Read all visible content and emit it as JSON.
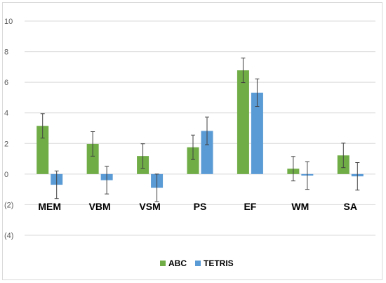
{
  "chart_data": {
    "type": "bar",
    "categories": [
      "MEM",
      "VBM",
      "VSM",
      "PS",
      "EF",
      "WM",
      "SA"
    ],
    "series": [
      {
        "name": "ABC",
        "color": "#70AD47",
        "values": [
          3.15,
          1.97,
          1.18,
          1.75,
          6.78,
          0.35,
          1.22
        ],
        "error": [
          0.8,
          0.8,
          0.8,
          0.8,
          0.8,
          0.8,
          0.8
        ]
      },
      {
        "name": "TETRIS",
        "color": "#5B9BD5",
        "values": [
          -0.7,
          -0.4,
          -0.9,
          2.82,
          5.32,
          -0.1,
          -0.15
        ],
        "error": [
          0.9,
          0.9,
          0.9,
          0.9,
          0.9,
          0.9,
          0.9
        ]
      }
    ],
    "ylim": [
      -4,
      10
    ],
    "yticks": [
      -4,
      -2,
      0,
      2,
      4,
      6,
      8,
      10
    ],
    "ytick_labels": [
      "(4)",
      "(2)",
      "0",
      "2",
      "4",
      "6",
      "8",
      "10"
    ],
    "grid": true,
    "legend": "bottom-center",
    "title": "",
    "xlabel": "",
    "ylabel": ""
  }
}
